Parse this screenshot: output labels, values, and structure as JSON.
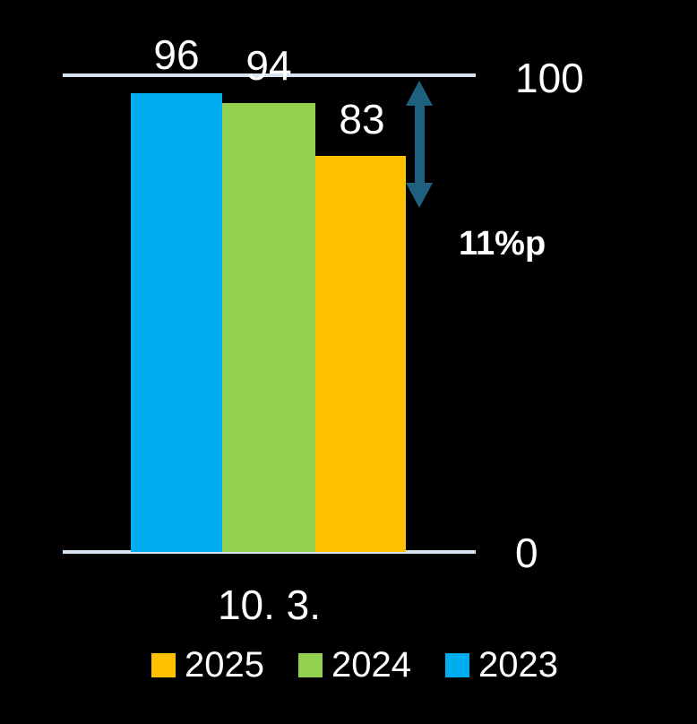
{
  "chart_data": {
    "type": "bar",
    "title": "",
    "xlabel": "",
    "ylabel": "",
    "categories": [
      "10. 3."
    ],
    "series": [
      {
        "name": "2023",
        "values": [
          96
        ],
        "color": "#00AEEF"
      },
      {
        "name": "2024",
        "values": [
          94
        ],
        "color": "#92D050"
      },
      {
        "name": "2025",
        "values": [
          83
        ],
        "color": "#FFC000"
      }
    ],
    "ylim": [
      0,
      100
    ],
    "y_axis_labels": {
      "top": "100",
      "bottom": "0"
    },
    "annotation": {
      "text": "11%p",
      "type": "vertical-double-arrow",
      "arrow_color": "#20607F"
    },
    "legend": {
      "position": "bottom",
      "items": [
        {
          "label": "2025",
          "color": "#FFC000"
        },
        {
          "label": "2024",
          "color": "#92D050"
        },
        {
          "label": "2023",
          "color": "#00AEEF"
        }
      ]
    },
    "grid": false,
    "background_color": "#000000",
    "text_color": "#FFFFFF",
    "baseline_color": "#D6E2F0"
  }
}
